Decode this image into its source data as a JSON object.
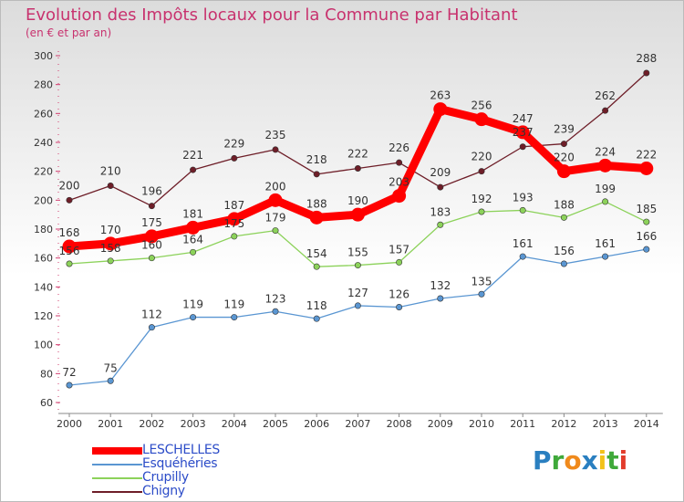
{
  "chart_data": {
    "type": "line",
    "title": "Evolution des Impôts locaux pour la Commune par Habitant",
    "subtitle": "(en € et par an)",
    "categories": [
      "2000",
      "2001",
      "2002",
      "2003",
      "2004",
      "2005",
      "2006",
      "2007",
      "2008",
      "2009",
      "2010",
      "2011",
      "2012",
      "2013",
      "2014"
    ],
    "yticks": [
      "60",
      "80",
      "100",
      "120",
      "140",
      "160",
      "180",
      "200",
      "220",
      "240",
      "260",
      "280",
      "300"
    ],
    "ylim": [
      60,
      300
    ],
    "grid": false,
    "legend_position": "bottom-left",
    "series": [
      {
        "name": "Chigny",
        "color": "#6e1e28",
        "values": [
          200,
          210,
          196,
          221,
          229,
          235,
          218,
          222,
          226,
          209,
          220,
          237,
          239,
          262,
          288
        ]
      },
      {
        "name": "Crupilly",
        "color": "#8cd25a",
        "values": [
          156,
          158,
          160,
          164,
          175,
          179,
          154,
          155,
          157,
          183,
          192,
          193,
          188,
          199,
          185
        ]
      },
      {
        "name": "Esquéhéries",
        "color": "#5a96d2",
        "values": [
          72,
          75,
          112,
          119,
          119,
          123,
          118,
          127,
          126,
          132,
          135,
          161,
          156,
          161,
          166
        ]
      },
      {
        "name": "LESCHELLES",
        "color": "#ff0000",
        "values": [
          168,
          170,
          175,
          181,
          187,
          200,
          188,
          190,
          203,
          263,
          256,
          247,
          220,
          224,
          222
        ]
      }
    ],
    "label_order": [
      "Chigny",
      "Crupilly",
      "Esquéhéries",
      "LESCHELLES"
    ]
  },
  "legend": {
    "items": [
      "LESCHELLES",
      "Esquéhéries",
      "Crupilly",
      "Chigny"
    ]
  },
  "logo": {
    "letters": [
      "P",
      "r",
      "o",
      "x",
      "i",
      "t",
      "i"
    ]
  }
}
